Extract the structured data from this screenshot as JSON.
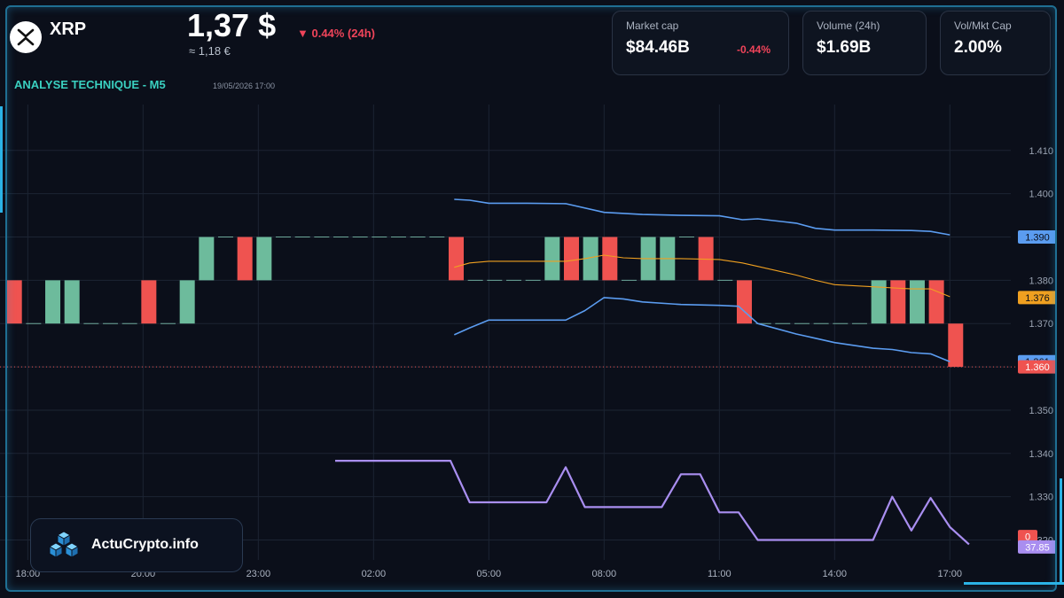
{
  "header": {
    "coin_symbol": "XRP",
    "price": "1,37 $",
    "price_change": "▼ 0.44% (24h)",
    "price_eur": "≈ 1,18 €",
    "analysis_title": "ANALYSE TECHNIQUE - M5",
    "analysis_date": "19/05/2026 17:00"
  },
  "stats": [
    {
      "label": "Market cap",
      "value": "$84.46B",
      "change": "-0.44%"
    },
    {
      "label": "Volume (24h)",
      "value": "$1.69B",
      "change": ""
    },
    {
      "label": "Vol/Mkt Cap",
      "value": "2.00%",
      "change": ""
    }
  ],
  "brand": {
    "name": "ActuCrypto.info"
  },
  "colors": {
    "up": "#6dbb9c",
    "down": "#ef5350",
    "band": "#5b9cf0",
    "basis": "#f0a020",
    "rsi": "#a98ef0",
    "accent": "#2bb3e6"
  },
  "chart_data": {
    "type": "candlestick",
    "x_ticks": [
      {
        "t": -8,
        "label": "18:00"
      },
      {
        "t": -5,
        "label": "20:00"
      },
      {
        "t": -2,
        "label": "23:00"
      },
      {
        "t": 1,
        "label": "02:00"
      },
      {
        "t": 4,
        "label": "05:00"
      },
      {
        "t": 7,
        "label": "08:00"
      },
      {
        "t": 10,
        "label": "11:00"
      },
      {
        "t": 13,
        "label": "14:00"
      },
      {
        "t": 16,
        "label": "17:00"
      }
    ],
    "y_ticks": [
      "1.410",
      "1.400",
      "1.390",
      "1.380",
      "1.370",
      "1.360",
      "1.350",
      "1.340",
      "1.330",
      "1.320"
    ],
    "ylim": [
      1.3154,
      1.4206
    ],
    "candles": [
      {
        "t": -8.35,
        "o": 1.38,
        "c": 1.37
      },
      {
        "t": -7.85,
        "o": 1.37,
        "c": 1.37
      },
      {
        "t": -7.35,
        "o": 1.37,
        "c": 1.38
      },
      {
        "t": -6.85,
        "o": 1.37,
        "c": 1.38
      },
      {
        "t": -6.35,
        "o": 1.37,
        "c": 1.37
      },
      {
        "t": -5.85,
        "o": 1.37,
        "c": 1.37
      },
      {
        "t": -5.35,
        "o": 1.37,
        "c": 1.37
      },
      {
        "t": -4.85,
        "o": 1.38,
        "c": 1.37
      },
      {
        "t": -4.35,
        "o": 1.37,
        "c": 1.37
      },
      {
        "t": -3.85,
        "o": 1.37,
        "c": 1.38
      },
      {
        "t": -3.35,
        "o": 1.38,
        "c": 1.39
      },
      {
        "t": -2.85,
        "o": 1.39,
        "c": 1.39
      },
      {
        "t": -2.35,
        "o": 1.39,
        "c": 1.38
      },
      {
        "t": -1.85,
        "o": 1.38,
        "c": 1.39
      },
      {
        "t": -1.35,
        "o": 1.39,
        "c": 1.39
      },
      {
        "t": -0.85,
        "o": 1.39,
        "c": 1.39
      },
      {
        "t": -0.35,
        "o": 1.39,
        "c": 1.39
      },
      {
        "t": 0.15,
        "o": 1.39,
        "c": 1.39
      },
      {
        "t": 0.65,
        "o": 1.39,
        "c": 1.39
      },
      {
        "t": 1.15,
        "o": 1.39,
        "c": 1.39
      },
      {
        "t": 1.65,
        "o": 1.39,
        "c": 1.39
      },
      {
        "t": 2.15,
        "o": 1.39,
        "c": 1.39
      },
      {
        "t": 2.65,
        "o": 1.39,
        "c": 1.39
      },
      {
        "t": 3.15,
        "o": 1.39,
        "c": 1.38
      },
      {
        "t": 3.65,
        "o": 1.38,
        "c": 1.38
      },
      {
        "t": 4.15,
        "o": 1.38,
        "c": 1.38
      },
      {
        "t": 4.65,
        "o": 1.38,
        "c": 1.38
      },
      {
        "t": 5.15,
        "o": 1.38,
        "c": 1.38
      },
      {
        "t": 5.65,
        "o": 1.38,
        "c": 1.39
      },
      {
        "t": 6.15,
        "o": 1.39,
        "c": 1.38
      },
      {
        "t": 6.65,
        "o": 1.38,
        "c": 1.39
      },
      {
        "t": 7.15,
        "o": 1.39,
        "c": 1.38
      },
      {
        "t": 7.65,
        "o": 1.38,
        "c": 1.38
      },
      {
        "t": 8.15,
        "o": 1.38,
        "c": 1.39
      },
      {
        "t": 8.65,
        "o": 1.38,
        "c": 1.39
      },
      {
        "t": 9.15,
        "o": 1.39,
        "c": 1.39
      },
      {
        "t": 9.65,
        "o": 1.39,
        "c": 1.38
      },
      {
        "t": 10.15,
        "o": 1.38,
        "c": 1.38
      },
      {
        "t": 10.65,
        "o": 1.38,
        "c": 1.37
      },
      {
        "t": 11.15,
        "o": 1.37,
        "c": 1.37
      },
      {
        "t": 11.65,
        "o": 1.37,
        "c": 1.37
      },
      {
        "t": 12.15,
        "o": 1.37,
        "c": 1.37
      },
      {
        "t": 12.65,
        "o": 1.37,
        "c": 1.37
      },
      {
        "t": 13.15,
        "o": 1.37,
        "c": 1.37
      },
      {
        "t": 13.65,
        "o": 1.37,
        "c": 1.37
      },
      {
        "t": 14.15,
        "o": 1.37,
        "c": 1.38
      },
      {
        "t": 14.65,
        "o": 1.38,
        "c": 1.37
      },
      {
        "t": 15.15,
        "o": 1.37,
        "c": 1.38
      },
      {
        "t": 15.65,
        "o": 1.38,
        "c": 1.37
      },
      {
        "t": 16.15,
        "o": 1.37,
        "c": 1.36
      }
    ],
    "bollinger_upper": [
      [
        3.1,
        1.3987
      ],
      [
        3.5,
        1.3985
      ],
      [
        4,
        1.3978
      ],
      [
        5,
        1.3978
      ],
      [
        6,
        1.3977
      ],
      [
        7,
        1.3957
      ],
      [
        8,
        1.3952
      ],
      [
        9,
        1.395
      ],
      [
        10,
        1.3949
      ],
      [
        10.6,
        1.394
      ],
      [
        11,
        1.3942
      ],
      [
        12,
        1.3932
      ],
      [
        12.5,
        1.392
      ],
      [
        13,
        1.3916
      ],
      [
        14,
        1.3916
      ],
      [
        15,
        1.3915
      ],
      [
        15.5,
        1.3913
      ],
      [
        16,
        1.3905
      ]
    ],
    "bollinger_basis": [
      [
        3.1,
        1.383
      ],
      [
        3.5,
        1.384
      ],
      [
        4,
        1.3844
      ],
      [
        5,
        1.3844
      ],
      [
        6,
        1.3844
      ],
      [
        6.5,
        1.385
      ],
      [
        7,
        1.3858
      ],
      [
        7.5,
        1.3852
      ],
      [
        8,
        1.385
      ],
      [
        9,
        1.385
      ],
      [
        9.5,
        1.3849
      ],
      [
        10,
        1.3848
      ],
      [
        10.6,
        1.384
      ],
      [
        11,
        1.3832
      ],
      [
        12,
        1.3812
      ],
      [
        12.5,
        1.38
      ],
      [
        13,
        1.379
      ],
      [
        14,
        1.3785
      ],
      [
        15,
        1.378
      ],
      [
        15.5,
        1.378
      ],
      [
        16,
        1.3762
      ]
    ],
    "bollinger_lower": [
      [
        3.1,
        1.3674
      ],
      [
        3.5,
        1.369
      ],
      [
        4,
        1.3708
      ],
      [
        5,
        1.3708
      ],
      [
        6,
        1.3708
      ],
      [
        6.5,
        1.373
      ],
      [
        7,
        1.376
      ],
      [
        7.5,
        1.3757
      ],
      [
        8,
        1.375
      ],
      [
        9,
        1.3744
      ],
      [
        10,
        1.3742
      ],
      [
        10.5,
        1.374
      ],
      [
        11,
        1.37
      ],
      [
        12,
        1.3676
      ],
      [
        12.5,
        1.3666
      ],
      [
        13,
        1.3656
      ],
      [
        14,
        1.3643
      ],
      [
        14.5,
        1.364
      ],
      [
        15,
        1.3633
      ],
      [
        15.5,
        1.363
      ],
      [
        16,
        1.3612
      ]
    ],
    "rsi": [
      [
        0,
        1.3383
      ],
      [
        3,
        1.3383
      ],
      [
        3.5,
        1.3287
      ],
      [
        4,
        1.3287
      ],
      [
        5.5,
        1.3287
      ],
      [
        6,
        1.3368
      ],
      [
        6.5,
        1.3276
      ],
      [
        8.5,
        1.3276
      ],
      [
        9,
        1.3352
      ],
      [
        9.5,
        1.3352
      ],
      [
        10,
        1.3264
      ],
      [
        10.5,
        1.3264
      ],
      [
        11,
        1.32
      ],
      [
        14,
        1.32
      ],
      [
        14.5,
        1.33
      ],
      [
        15,
        1.3222
      ],
      [
        15.5,
        1.3297
      ],
      [
        16,
        1.323
      ],
      [
        16.5,
        1.319
      ]
    ],
    "price_line": 1.36,
    "price_tags": [
      {
        "value": 1.39,
        "label": "1.390",
        "kind": "upper"
      },
      {
        "value": 1.376,
        "label": "1.376",
        "kind": "basis"
      },
      {
        "value": 1.3612,
        "label": "1.361",
        "kind": "lower"
      },
      {
        "value": 1.36,
        "label": "1.360",
        "kind": "price"
      },
      {
        "value": 1.3208,
        "label": "0",
        "kind": "price"
      },
      {
        "value": 1.3184,
        "label": "37.85",
        "kind": "rsi"
      }
    ]
  }
}
